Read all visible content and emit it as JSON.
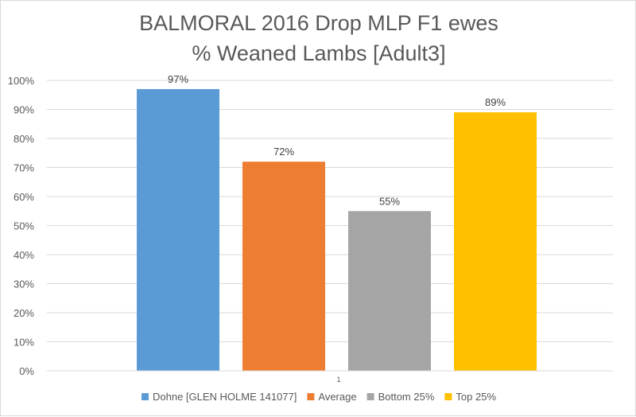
{
  "chart_data": {
    "type": "bar",
    "title": "BALMORAL 2016 Drop MLP F1 ewes",
    "subtitle": "% Weaned Lambs [Adult3]",
    "categories": [
      "1"
    ],
    "ylim": [
      0,
      1.0
    ],
    "y_ticks": [
      0,
      0.1,
      0.2,
      0.3,
      0.4,
      0.5,
      0.6,
      0.7,
      0.8,
      0.9,
      1.0
    ],
    "y_tick_labels": [
      "0%",
      "10%",
      "20%",
      "30%",
      "40%",
      "50%",
      "60%",
      "70%",
      "80%",
      "90%",
      "100%"
    ],
    "grid": true,
    "legend_position": "bottom",
    "series": [
      {
        "name": "Dohne [GLEN HOLME 141077]",
        "values": [
          0.97
        ],
        "label": "97%",
        "color": "#5b9bd5"
      },
      {
        "name": "Average",
        "values": [
          0.72
        ],
        "label": "72%",
        "color": "#ed7d31"
      },
      {
        "name": "Bottom 25%",
        "values": [
          0.55
        ],
        "label": "55%",
        "color": "#a5a5a5"
      },
      {
        "name": "Top 25%",
        "values": [
          0.89
        ],
        "label": "89%",
        "color": "#ffc000"
      }
    ]
  }
}
